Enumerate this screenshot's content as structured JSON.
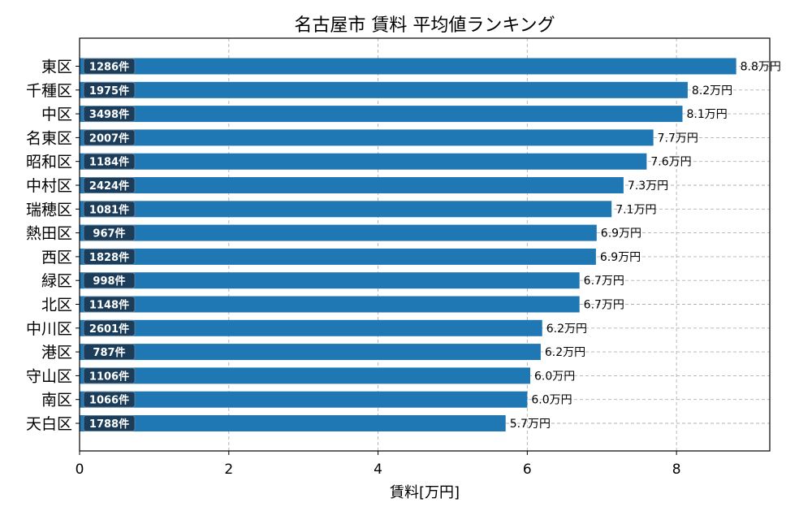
{
  "chart_data": {
    "type": "bar",
    "orientation": "horizontal",
    "title": "名古屋市 賃料 平均値ランキング",
    "xlabel": "賃料[万円]",
    "ylabel": "",
    "xlim": [
      0,
      9.25
    ],
    "xticks": [
      0,
      2,
      4,
      6,
      8
    ],
    "grid": true,
    "bar_color": "#1f77b4",
    "count_badge_color": "#1c3d5a",
    "categories": [
      "東区",
      "千種区",
      "中区",
      "名東区",
      "昭和区",
      "中村区",
      "瑞穂区",
      "熱田区",
      "西区",
      "緑区",
      "北区",
      "中川区",
      "港区",
      "守山区",
      "南区",
      "天白区"
    ],
    "values": [
      8.8,
      8.15,
      8.08,
      7.69,
      7.6,
      7.29,
      7.13,
      6.93,
      6.92,
      6.7,
      6.7,
      6.2,
      6.18,
      6.04,
      6.0,
      5.71
    ],
    "value_labels": [
      "8.8万円",
      "8.2万円",
      "8.1万円",
      "7.7万円",
      "7.6万円",
      "7.3万円",
      "7.1万円",
      "6.9万円",
      "6.9万円",
      "6.7万円",
      "6.7万円",
      "6.2万円",
      "6.2万円",
      "6.0万円",
      "6.0万円",
      "5.7万円"
    ],
    "count_labels": [
      "1286件",
      "1975件",
      "3498件",
      "2007件",
      "1184件",
      "2424件",
      "1081件",
      "967件",
      "1828件",
      "998件",
      "1148件",
      "2601件",
      "787件",
      "1106件",
      "1066件",
      "1788件"
    ]
  }
}
